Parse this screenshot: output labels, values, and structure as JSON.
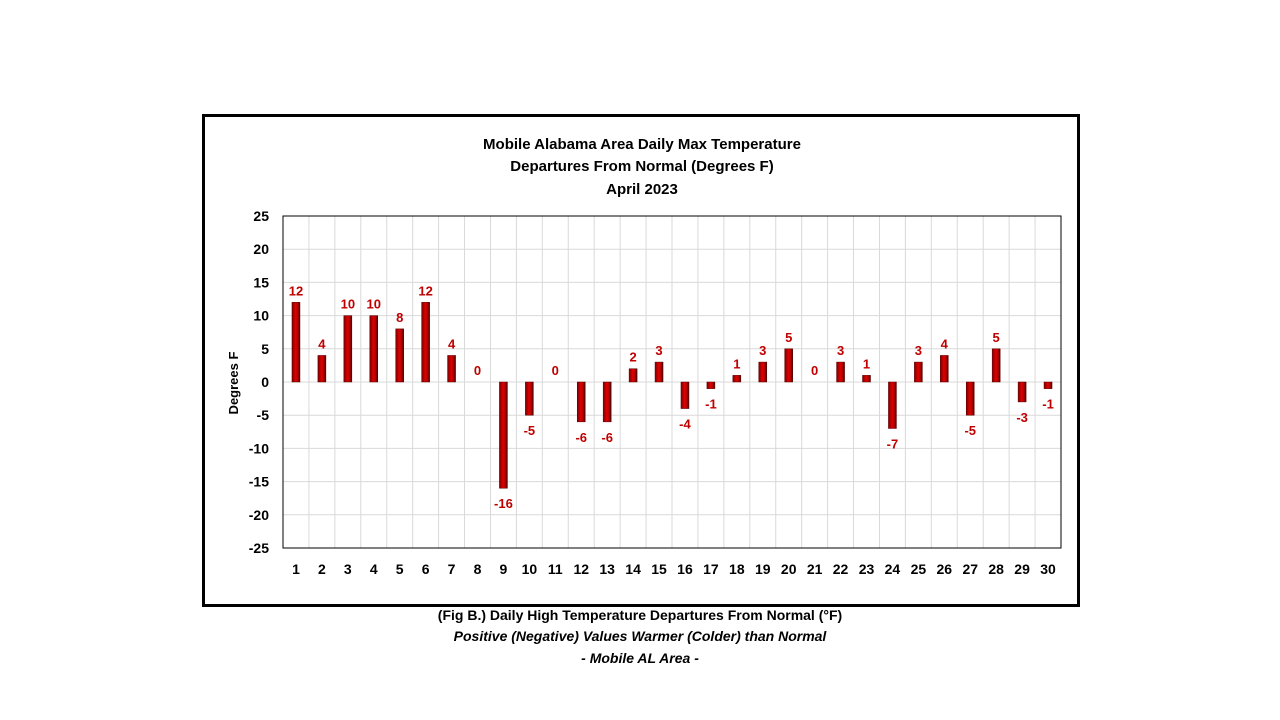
{
  "chart_data": {
    "type": "bar",
    "title_lines": [
      "Mobile Alabama Area Daily Max Temperature",
      "Departures From Normal (Degrees F)",
      "April 2023"
    ],
    "xlabel": "",
    "ylabel": "Degrees F",
    "ylim": [
      -25,
      25
    ],
    "yticks": [
      25,
      20,
      15,
      10,
      5,
      0,
      -5,
      -10,
      -15,
      -20,
      -25
    ],
    "grid": true,
    "categories": [
      "1",
      "2",
      "3",
      "4",
      "5",
      "6",
      "7",
      "8",
      "9",
      "10",
      "11",
      "12",
      "13",
      "14",
      "15",
      "16",
      "17",
      "18",
      "19",
      "20",
      "21",
      "22",
      "23",
      "24",
      "25",
      "26",
      "27",
      "28",
      "29",
      "30"
    ],
    "values": [
      12,
      4,
      10,
      10,
      8,
      12,
      4,
      0,
      -16,
      -5,
      0,
      -6,
      -6,
      2,
      3,
      -4,
      -1,
      1,
      3,
      5,
      0,
      3,
      1,
      -7,
      3,
      4,
      -5,
      5,
      -3,
      -1
    ],
    "bar_color": "#c00000",
    "label_color": "#c00000"
  },
  "caption": {
    "line1": "(Fig B.) Daily High Temperature Departures From Normal (°F)",
    "line2": "Positive (Negative) Values Warmer (Colder) than Normal",
    "line3": "- Mobile AL Area -"
  }
}
